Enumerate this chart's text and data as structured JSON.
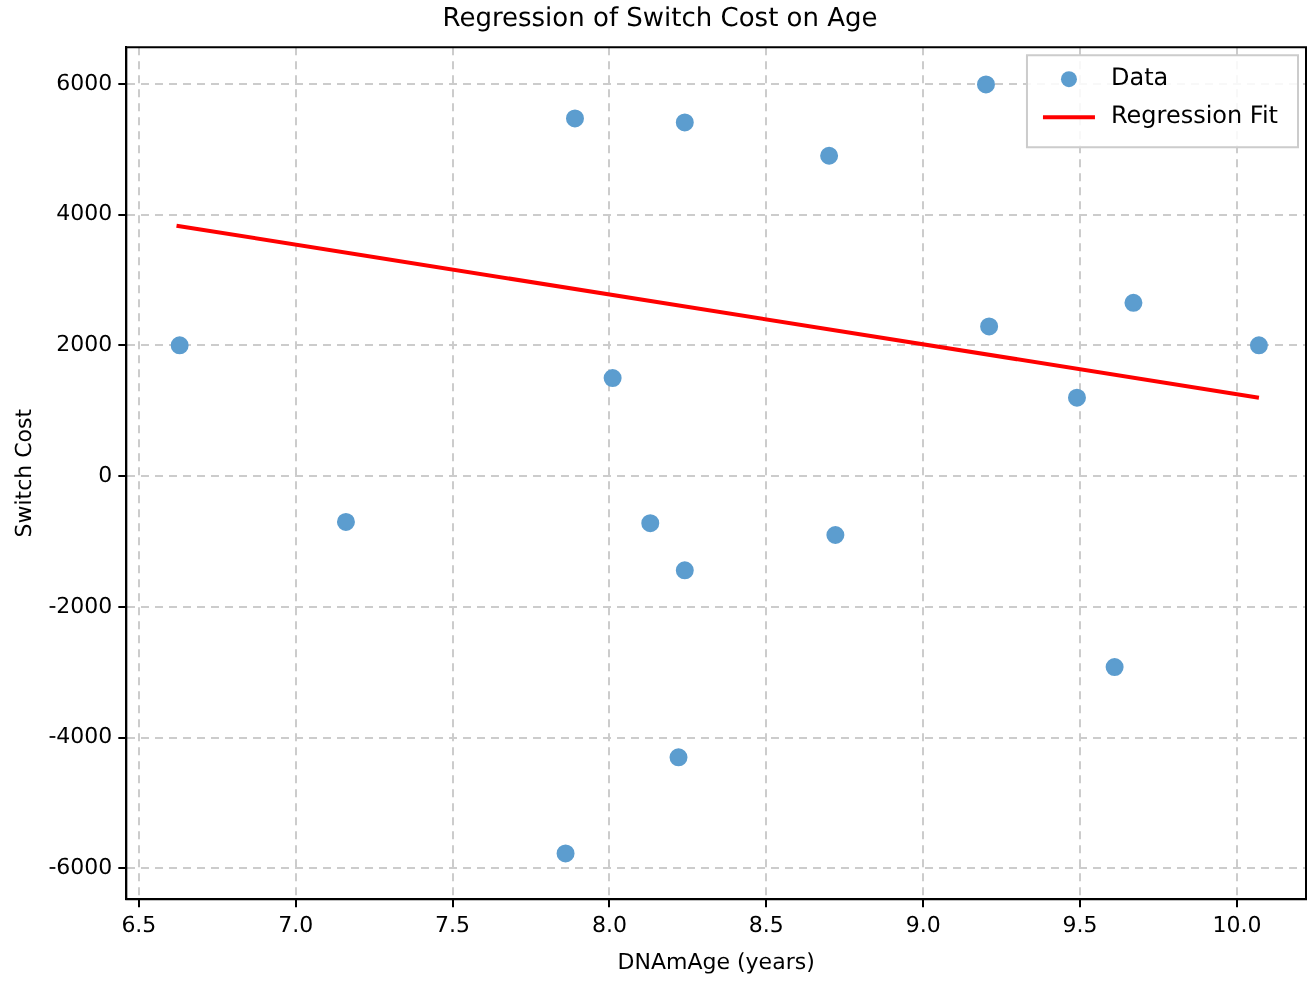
{
  "chart_data": {
    "type": "scatter",
    "title": "Regression of Switch Cost on Age",
    "xlabel": "DNAmAge (years)",
    "ylabel": "Switch Cost",
    "xlim": [
      6.46,
      10.22
    ],
    "xticks": [
      6.5,
      {
        "value": 7,
        "label": "7.0"
      },
      7.5,
      {
        "value": 8,
        "label": "8.0"
      },
      8.5,
      {
        "value": 9,
        "label": "9.0"
      },
      9.5,
      {
        "value": 10,
        "label": "10.0"
      }
    ],
    "ylim": [
      -6470,
      6560
    ],
    "yticks": [
      -6000,
      -4000,
      -2000,
      0,
      2000,
      4000,
      6000
    ],
    "grid": true,
    "legend": "top right",
    "marker": "circle",
    "series": [
      {
        "name": "Data",
        "type": "scatter",
        "color": "#5c9dcf",
        "x": [
          6.63,
          7.16,
          7.89,
          8.01,
          8.13,
          8.24,
          8.24,
          8.22,
          7.86,
          8.7,
          8.72,
          9.2,
          9.21,
          9.49,
          9.61,
          9.67,
          10.07
        ],
        "values": [
          2000,
          -700,
          5470,
          1500,
          -720,
          -1440,
          5410,
          -4300,
          -5770,
          4900,
          -900,
          5990,
          2290,
          1200,
          -2920,
          2650,
          2000
        ]
      },
      {
        "name": "Regression Fit",
        "type": "line",
        "color": "#ff0000",
        "marker": "none",
        "x": [
          6.62,
          10.07
        ],
        "values": [
          3830,
          1200
        ]
      }
    ]
  }
}
